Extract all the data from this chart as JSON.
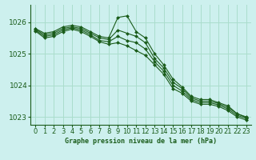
{
  "title": "Graphe pression niveau de la mer (hPa)",
  "bg_color": "#cdf0ee",
  "grid_color": "#aaddcc",
  "line_color": "#1a5c1a",
  "marker_color": "#1a5c1a",
  "xlim": [
    -0.5,
    23.5
  ],
  "ylim": [
    1022.75,
    1026.55
  ],
  "yticks": [
    1023,
    1024,
    1025,
    1026
  ],
  "xtick_labels": [
    "0",
    "1",
    "2",
    "3",
    "4",
    "5",
    "6",
    "7",
    "8",
    "9",
    "10",
    "11",
    "12",
    "13",
    "14",
    "15",
    "16",
    "17",
    "18",
    "19",
    "20",
    "21",
    "22",
    "23"
  ],
  "series": [
    [
      1025.8,
      1025.65,
      1025.7,
      1025.85,
      1025.9,
      1025.85,
      1025.7,
      1025.55,
      1025.5,
      1026.15,
      1026.2,
      1025.7,
      1025.5,
      1025.0,
      1024.65,
      1024.2,
      1023.95,
      1023.65,
      1023.55,
      1023.55,
      1023.45,
      1023.35,
      1023.1,
      1023.0
    ],
    [
      1025.78,
      1025.6,
      1025.65,
      1025.8,
      1025.85,
      1025.8,
      1025.65,
      1025.5,
      1025.45,
      1025.75,
      1025.65,
      1025.55,
      1025.35,
      1024.85,
      1024.55,
      1024.1,
      1023.9,
      1023.6,
      1023.5,
      1023.5,
      1023.42,
      1023.3,
      1023.1,
      1022.98
    ],
    [
      1025.75,
      1025.55,
      1025.6,
      1025.75,
      1025.82,
      1025.75,
      1025.6,
      1025.42,
      1025.38,
      1025.55,
      1025.42,
      1025.35,
      1025.15,
      1024.75,
      1024.45,
      1024.0,
      1023.82,
      1023.55,
      1023.45,
      1023.45,
      1023.38,
      1023.25,
      1023.05,
      1022.95
    ],
    [
      1025.72,
      1025.5,
      1025.55,
      1025.7,
      1025.78,
      1025.7,
      1025.55,
      1025.38,
      1025.3,
      1025.35,
      1025.25,
      1025.1,
      1024.95,
      1024.65,
      1024.35,
      1023.9,
      1023.75,
      1023.5,
      1023.4,
      1023.4,
      1023.33,
      1023.2,
      1023.0,
      1022.9
    ]
  ]
}
